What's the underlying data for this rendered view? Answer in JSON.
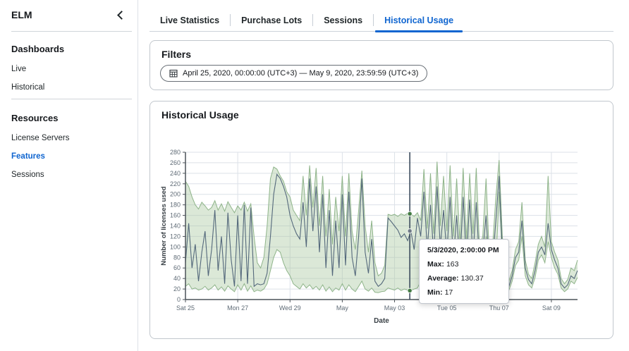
{
  "app": {
    "title": "ELM"
  },
  "icons": {
    "collapse": "chevron-left",
    "date_filter": "calendar"
  },
  "sidebar": {
    "sections": [
      {
        "heading": "Dashboards",
        "items": [
          {
            "label": "Live",
            "active": false
          },
          {
            "label": "Historical",
            "active": false
          }
        ]
      },
      {
        "heading": "Resources",
        "items": [
          {
            "label": "License Servers",
            "active": false
          },
          {
            "label": "Features",
            "active": true
          },
          {
            "label": "Sessions",
            "active": false
          }
        ]
      }
    ]
  },
  "tabs": [
    {
      "label": "Live Statistics",
      "active": false
    },
    {
      "label": "Purchase Lots",
      "active": false
    },
    {
      "label": "Sessions",
      "active": false
    },
    {
      "label": "Historical Usage",
      "active": true
    }
  ],
  "filters": {
    "title": "Filters",
    "date_range": "April 25, 2020, 00:00:00 (UTC+3) — May 9, 2020, 23:59:59 (UTC+3)"
  },
  "panel": {
    "title": "Historical Usage"
  },
  "tooltip": {
    "title": "5/3/2020, 2:00:00 PM",
    "rows": [
      {
        "label": "Max:",
        "value": "163"
      },
      {
        "label": "Average:",
        "value": "130.37"
      },
      {
        "label": "Min:",
        "value": "17"
      }
    ]
  },
  "chart_data": {
    "type": "area",
    "title": "Historical Usage",
    "xlabel": "Date",
    "ylabel": "Number of licenses used",
    "ylim": [
      0,
      280
    ],
    "ytick_step": 20,
    "grid": true,
    "x_hours_step": 3,
    "x_total_hours": 360,
    "x_ticks": [
      {
        "hour": 0,
        "label": "Sat 25"
      },
      {
        "hour": 48,
        "label": "Mon 27"
      },
      {
        "hour": 96,
        "label": "Wed 29"
      },
      {
        "hour": 144,
        "label": "May"
      },
      {
        "hour": 192,
        "label": "May 03"
      },
      {
        "hour": 240,
        "label": "Tue 05"
      },
      {
        "hour": 288,
        "label": "Thu 07"
      },
      {
        "hour": 336,
        "label": "Sat 09"
      }
    ],
    "series": [
      {
        "name": "Max",
        "values": [
          225,
          215,
          195,
          180,
          172,
          185,
          178,
          170,
          175,
          188,
          170,
          182,
          168,
          186,
          175,
          165,
          178,
          170,
          185,
          168,
          182,
          120,
          70,
          60,
          80,
          140,
          230,
          252,
          248,
          235,
          225,
          205,
          195,
          170,
          160,
          150,
          235,
          160,
          255,
          175,
          250,
          140,
          235,
          120,
          210,
          105,
          195,
          130,
          235,
          120,
          240,
          130,
          95,
          170,
          245,
          140,
          90,
          150,
          70,
          45,
          50,
          65,
          162,
          160,
          162,
          158,
          163,
          160,
          164,
          163,
          158,
          165,
          150,
          248,
          135,
          240,
          125,
          262,
          140,
          235,
          130,
          255,
          120,
          230,
          110,
          250,
          115,
          240,
          125,
          250,
          100,
          120,
          230,
          85,
          100,
          195,
          265,
          120,
          45,
          35,
          55,
          95,
          110,
          185,
          75,
          48,
          40,
          70,
          105,
          120,
          100,
          235,
          110,
          90,
          75,
          40,
          30,
          38,
          60,
          55,
          75
        ]
      },
      {
        "name": "Average",
        "values": [
          70,
          145,
          60,
          105,
          35,
          90,
          130,
          45,
          95,
          170,
          55,
          120,
          30,
          165,
          75,
          25,
          160,
          35,
          180,
          30,
          175,
          25,
          30,
          28,
          30,
          50,
          120,
          200,
          238,
          230,
          215,
          195,
          160,
          140,
          125,
          115,
          185,
          100,
          230,
          130,
          215,
          90,
          200,
          60,
          170,
          45,
          150,
          60,
          200,
          65,
          205,
          80,
          45,
          120,
          230,
          90,
          50,
          115,
          35,
          25,
          30,
          40,
          155,
          148,
          140,
          132,
          118,
          125,
          112,
          130,
          95,
          155,
          120,
          205,
          95,
          180,
          85,
          215,
          100,
          170,
          85,
          195,
          75,
          160,
          65,
          195,
          70,
          190,
          80,
          185,
          65,
          90,
          160,
          55,
          70,
          150,
          235,
          90,
          35,
          25,
          45,
          80,
          90,
          150,
          60,
          38,
          30,
          55,
          90,
          100,
          85,
          145,
          95,
          75,
          60,
          30,
          22,
          28,
          45,
          40,
          55
        ]
      },
      {
        "name": "Min",
        "values": [
          25,
          30,
          20,
          22,
          18,
          20,
          25,
          18,
          22,
          28,
          18,
          24,
          16,
          26,
          20,
          15,
          28,
          18,
          30,
          16,
          26,
          15,
          18,
          16,
          20,
          30,
          55,
          80,
          95,
          90,
          70,
          55,
          45,
          30,
          25,
          20,
          30,
          22,
          28,
          20,
          25,
          18,
          28,
          16,
          24,
          15,
          22,
          18,
          30,
          18,
          28,
          20,
          15,
          25,
          35,
          20,
          16,
          22,
          14,
          13,
          15,
          16,
          22,
          20,
          18,
          22,
          17,
          20,
          18,
          17,
          20,
          22,
          35,
          60,
          30,
          50,
          28,
          65,
          32,
          55,
          28,
          60,
          25,
          50,
          22,
          58,
          26,
          55,
          24,
          55,
          22,
          40,
          120,
          35,
          45,
          60,
          205,
          70,
          25,
          18,
          35,
          65,
          75,
          120,
          45,
          28,
          22,
          42,
          75,
          85,
          70,
          110,
          80,
          60,
          48,
          22,
          15,
          20,
          35,
          30,
          42
        ]
      }
    ],
    "crosshair": {
      "hour": 206,
      "max": 163,
      "average": 130.37,
      "min": 17
    },
    "colors": {
      "band_fill": "#a9c9a0",
      "band_stroke": "#8fb48a",
      "average_line": "#54687b",
      "crosshair": "#3d4c5e",
      "marker_green": "#417a41",
      "marker_gray": "#6f7a87",
      "grid": "#dce1e8",
      "axis": "#4b5258",
      "tick_text": "#5f6b76",
      "accent": "#0f65d0"
    }
  }
}
